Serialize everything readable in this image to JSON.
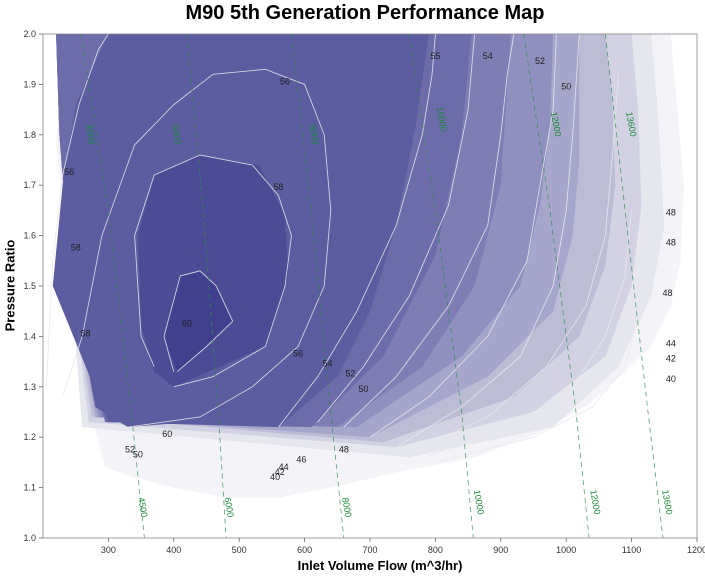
{
  "chart_data": {
    "type": "contour",
    "title": "M90 5th Generation Performance Map",
    "xlabel": "Inlet Volume Flow (m^3/hr)",
    "ylabel": "Pressure Ratio",
    "xlim": [
      200,
      1200
    ],
    "ylim": [
      1.0,
      2.0
    ],
    "xticks": [
      300,
      400,
      500,
      600,
      700,
      800,
      900,
      1000,
      1100,
      1200
    ],
    "yticks": [
      1.0,
      1.1,
      1.2,
      1.3,
      1.4,
      1.5,
      1.6,
      1.7,
      1.8,
      1.9,
      2.0
    ],
    "xtick_labels": [
      "300",
      "400",
      "500",
      "600",
      "700",
      "800",
      "900",
      "1000",
      "1100",
      "1200"
    ],
    "ytick_labels": [
      "1.0",
      "1.1",
      "1.2",
      "1.3",
      "1.4",
      "1.5",
      "1.6",
      "1.7",
      "1.8",
      "1.9",
      "2.0"
    ],
    "grid": false,
    "efficiency_contours": [
      {
        "label": "60",
        "points": [
          [
            400,
            1.33
          ],
          [
            385,
            1.4
          ],
          [
            410,
            1.52
          ],
          [
            440,
            1.53
          ],
          [
            465,
            1.5
          ],
          [
            490,
            1.43
          ],
          [
            450,
            1.38
          ],
          [
            405,
            1.33
          ]
        ]
      },
      {
        "label": "58",
        "points": [
          [
            370,
            1.34
          ],
          [
            350,
            1.4
          ],
          [
            340,
            1.6
          ],
          [
            370,
            1.72
          ],
          [
            440,
            1.76
          ],
          [
            520,
            1.74
          ],
          [
            560,
            1.68
          ],
          [
            580,
            1.6
          ],
          [
            570,
            1.5
          ],
          [
            540,
            1.38
          ],
          [
            460,
            1.32
          ],
          [
            400,
            1.3
          ]
        ]
      },
      {
        "label": "56",
        "points": [
          [
            230,
            1.28
          ],
          [
            260,
            1.4
          ],
          [
            290,
            1.6
          ],
          [
            340,
            1.78
          ],
          [
            400,
            1.86
          ],
          [
            460,
            1.92
          ],
          [
            540,
            1.93
          ],
          [
            600,
            1.9
          ],
          [
            630,
            1.8
          ],
          [
            640,
            1.65
          ],
          [
            630,
            1.5
          ],
          [
            590,
            1.38
          ],
          [
            520,
            1.3
          ],
          [
            440,
            1.24
          ],
          [
            330,
            1.22
          ],
          [
            280,
            1.22
          ]
        ]
      },
      {
        "label": "54",
        "points": [
          [
            205,
            1.3
          ],
          [
            215,
            1.55
          ],
          [
            230,
            1.72
          ],
          [
            255,
            1.86
          ],
          [
            285,
            1.97
          ],
          [
            300,
            2.0
          ]
        ]
      },
      {
        "label": "54b",
        "points": [
          [
            560,
            1.22
          ],
          [
            620,
            1.32
          ],
          [
            680,
            1.45
          ],
          [
            740,
            1.62
          ],
          [
            780,
            1.8
          ],
          [
            795,
            1.92
          ],
          [
            800,
            2.0
          ]
        ]
      },
      {
        "label": "52",
        "points": [
          [
            620,
            1.23
          ],
          [
            690,
            1.34
          ],
          [
            760,
            1.48
          ],
          [
            820,
            1.66
          ],
          [
            850,
            1.85
          ],
          [
            860,
            2.0
          ]
        ]
      },
      {
        "label": "50",
        "points": [
          [
            660,
            1.22
          ],
          [
            740,
            1.32
          ],
          [
            820,
            1.46
          ],
          [
            880,
            1.62
          ],
          [
            900,
            1.8
          ],
          [
            910,
            1.92
          ],
          [
            920,
            2.0
          ]
        ]
      },
      {
        "label": "48",
        "points": [
          [
            700,
            1.2
          ],
          [
            790,
            1.28
          ],
          [
            880,
            1.4
          ],
          [
            940,
            1.55
          ],
          [
            960,
            1.7
          ],
          [
            980,
            1.85
          ],
          [
            985,
            2.0
          ]
        ]
      },
      {
        "label": "46",
        "points": [
          [
            740,
            1.18
          ],
          [
            840,
            1.26
          ],
          [
            930,
            1.36
          ],
          [
            980,
            1.5
          ],
          [
            1000,
            1.65
          ],
          [
            1010,
            1.8
          ],
          [
            1020,
            2.0
          ]
        ]
      },
      {
        "label": "44",
        "points": [
          [
            760,
            1.17
          ],
          [
            880,
            1.24
          ],
          [
            970,
            1.34
          ],
          [
            1030,
            1.46
          ],
          [
            1060,
            1.6
          ],
          [
            1070,
            1.75
          ],
          [
            1080,
            1.92
          ]
        ]
      },
      {
        "label": "42",
        "points": [
          [
            780,
            1.16
          ],
          [
            920,
            1.22
          ],
          [
            1010,
            1.3
          ],
          [
            1060,
            1.4
          ],
          [
            1090,
            1.52
          ],
          [
            1100,
            1.65
          ]
        ]
      },
      {
        "label": "40",
        "points": [
          [
            800,
            1.15
          ],
          [
            950,
            1.2
          ],
          [
            1040,
            1.26
          ],
          [
            1090,
            1.34
          ],
          [
            1110,
            1.44
          ]
        ]
      }
    ],
    "speed_lines": [
      {
        "label": "4500",
        "points": [
          [
            258,
            2.0
          ],
          [
            300,
            1.65
          ],
          [
            335,
            1.25
          ],
          [
            355,
            1.0
          ]
        ]
      },
      {
        "label": "6000",
        "points": [
          [
            420,
            2.0
          ],
          [
            445,
            1.65
          ],
          [
            468,
            1.25
          ],
          [
            480,
            1.0
          ]
        ]
      },
      {
        "label": "8000",
        "points": [
          [
            580,
            2.0
          ],
          [
            610,
            1.65
          ],
          [
            640,
            1.25
          ],
          [
            660,
            1.0
          ]
        ]
      },
      {
        "label": "10000",
        "points": [
          [
            760,
            2.0
          ],
          [
            800,
            1.65
          ],
          [
            840,
            1.25
          ],
          [
            858,
            1.0
          ]
        ]
      },
      {
        "label": "12000",
        "points": [
          [
            935,
            2.0
          ],
          [
            975,
            1.65
          ],
          [
            1015,
            1.25
          ],
          [
            1035,
            1.0
          ]
        ]
      },
      {
        "label": "13600",
        "points": [
          [
            1060,
            2.0
          ],
          [
            1090,
            1.65
          ],
          [
            1125,
            1.25
          ],
          [
            1148,
            1.0
          ]
        ]
      }
    ],
    "contour_labels": [
      {
        "text": "60",
        "x": 420,
        "y": 1.42
      },
      {
        "text": "58",
        "x": 560,
        "y": 1.69
      },
      {
        "text": "56",
        "x": 590,
        "y": 1.36
      },
      {
        "text": "54",
        "x": 635,
        "y": 1.34
      },
      {
        "text": "52",
        "x": 670,
        "y": 1.32
      },
      {
        "text": "50",
        "x": 690,
        "y": 1.29
      },
      {
        "text": "48",
        "x": 660,
        "y": 1.17
      },
      {
        "text": "46",
        "x": 595,
        "y": 1.15
      },
      {
        "text": "44",
        "x": 568,
        "y": 1.135
      },
      {
        "text": "42",
        "x": 562,
        "y": 1.125
      },
      {
        "text": "40",
        "x": 555,
        "y": 1.115
      },
      {
        "text": "50",
        "x": 345,
        "y": 1.16
      },
      {
        "text": "52",
        "x": 333,
        "y": 1.17
      },
      {
        "text": "56",
        "x": 570,
        "y": 1.9
      },
      {
        "text": "55",
        "x": 800,
        "y": 1.95
      },
      {
        "text": "54",
        "x": 880,
        "y": 1.95
      },
      {
        "text": "52",
        "x": 960,
        "y": 1.94
      },
      {
        "text": "50",
        "x": 1000,
        "y": 1.89
      },
      {
        "text": "56",
        "x": 240,
        "y": 1.72
      },
      {
        "text": "58",
        "x": 250,
        "y": 1.57
      },
      {
        "text": "58",
        "x": 265,
        "y": 1.4
      },
      {
        "text": "60",
        "x": 390,
        "y": 1.2
      },
      {
        "text": "48",
        "x": 1160,
        "y": 1.64
      },
      {
        "text": "48",
        "x": 1160,
        "y": 1.58
      },
      {
        "text": "48",
        "x": 1155,
        "y": 1.48
      },
      {
        "text": "44",
        "x": 1160,
        "y": 1.38
      },
      {
        "text": "42",
        "x": 1160,
        "y": 1.35
      },
      {
        "text": "40",
        "x": 1160,
        "y": 1.31
      }
    ],
    "speed_line_labels_top": [
      {
        "text": "4500",
        "x": 268,
        "y": 1.8
      },
      {
        "text": "6000",
        "x": 400,
        "y": 1.8
      },
      {
        "text": "8000",
        "x": 610,
        "y": 1.8
      },
      {
        "text": "10000",
        "x": 805,
        "y": 1.83
      },
      {
        "text": "12000",
        "x": 980,
        "y": 1.82
      },
      {
        "text": "13600",
        "x": 1095,
        "y": 1.82
      }
    ],
    "speed_line_labels_bottom": [
      {
        "text": "4500",
        "x": 348,
        "y": 1.06
      },
      {
        "text": "6000",
        "x": 480,
        "y": 1.06
      },
      {
        "text": "8000",
        "x": 660,
        "y": 1.06
      },
      {
        "text": "10000",
        "x": 862,
        "y": 1.07
      },
      {
        "text": "12000",
        "x": 1040,
        "y": 1.07
      },
      {
        "text": "13600",
        "x": 1150,
        "y": 1.07
      }
    ],
    "fill_colors": [
      "#f4f4f8",
      "#e6e6ef",
      "#d2d2e4",
      "#bcbcd7",
      "#a6a6ca",
      "#9090be",
      "#7e7eb4",
      "#6c6caa",
      "#5c5ca0",
      "#4c4c96",
      "#40408f"
    ]
  }
}
